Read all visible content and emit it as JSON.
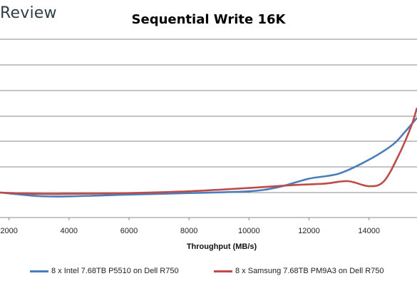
{
  "brand": "Review",
  "chart_data": {
    "type": "line",
    "title": "Sequential Write 16K",
    "xlabel": "Throughput (MB/s)",
    "ylabel": "",
    "xlim": [
      1700,
      15600
    ],
    "x_ticks": [
      "2000",
      "4000",
      "6000",
      "8000",
      "10000",
      "12000",
      "14000"
    ],
    "x_tick_values": [
      2000,
      4000,
      6000,
      8000,
      10000,
      12000,
      14000
    ],
    "ylim": [
      0,
      8
    ],
    "grid": true,
    "legend_position": "bottom",
    "series": [
      {
        "name": "8 x Intel 7.68TB P5510 on Dell R750",
        "color": "#4a7ebb",
        "x": [
          1700,
          3000,
          4000,
          6000,
          8000,
          10000,
          11000,
          12000,
          13000,
          14000,
          14800,
          15200,
          15600
        ],
        "y": [
          1.0,
          0.86,
          0.85,
          0.92,
          0.98,
          1.05,
          1.22,
          1.55,
          1.75,
          2.3,
          2.9,
          3.4,
          3.95
        ]
      },
      {
        "name": "8 x Samsung 7.68TB PM9A3 on Dell R750",
        "color": "#be4b48",
        "x": [
          1700,
          3000,
          4000,
          6000,
          8000,
          10000,
          11500,
          12500,
          13300,
          14000,
          14500,
          15000,
          15400,
          15600
        ],
        "y": [
          1.0,
          0.95,
          0.95,
          0.98,
          1.05,
          1.18,
          1.3,
          1.35,
          1.45,
          1.25,
          1.45,
          2.5,
          3.6,
          4.35
        ]
      }
    ]
  }
}
